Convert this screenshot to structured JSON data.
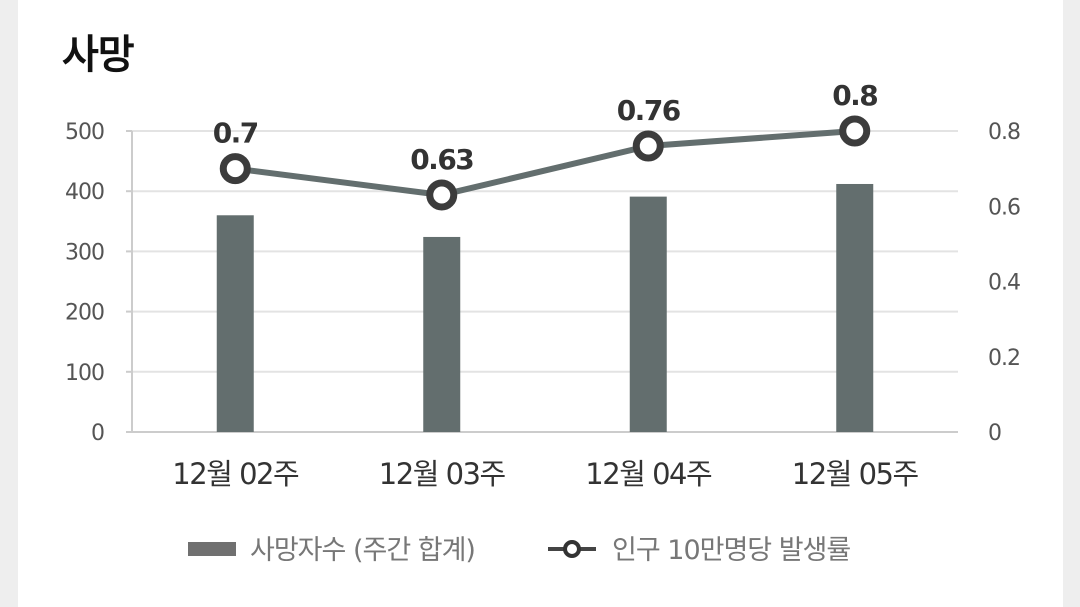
{
  "title": "사망",
  "chart_data": {
    "type": "bar+line",
    "title": "사망",
    "categories": [
      "12월 02주",
      "12월 03주",
      "12월 04주",
      "12월 05주"
    ],
    "series": [
      {
        "name": "사망자수 (주간 합계)",
        "type": "bar",
        "axis": "left",
        "values": [
          360,
          324,
          391,
          412
        ],
        "color": "#636e6e"
      },
      {
        "name": "인구 10만명당 발생률",
        "type": "line",
        "axis": "right",
        "values": [
          0.7,
          0.63,
          0.76,
          0.8
        ],
        "labels": [
          "0.7",
          "0.63",
          "0.76",
          "0.8"
        ],
        "color": "#636e6e"
      }
    ],
    "y_left": {
      "ylim": [
        0,
        500
      ],
      "ticks": [
        "0",
        "100",
        "200",
        "300",
        "400",
        "500"
      ]
    },
    "y_right": {
      "ylim": [
        0,
        0.8
      ],
      "ticks": [
        "0",
        "0.2",
        "0.4",
        "0.6",
        "0.8"
      ]
    },
    "grid": true,
    "legend_position": "bottom"
  }
}
